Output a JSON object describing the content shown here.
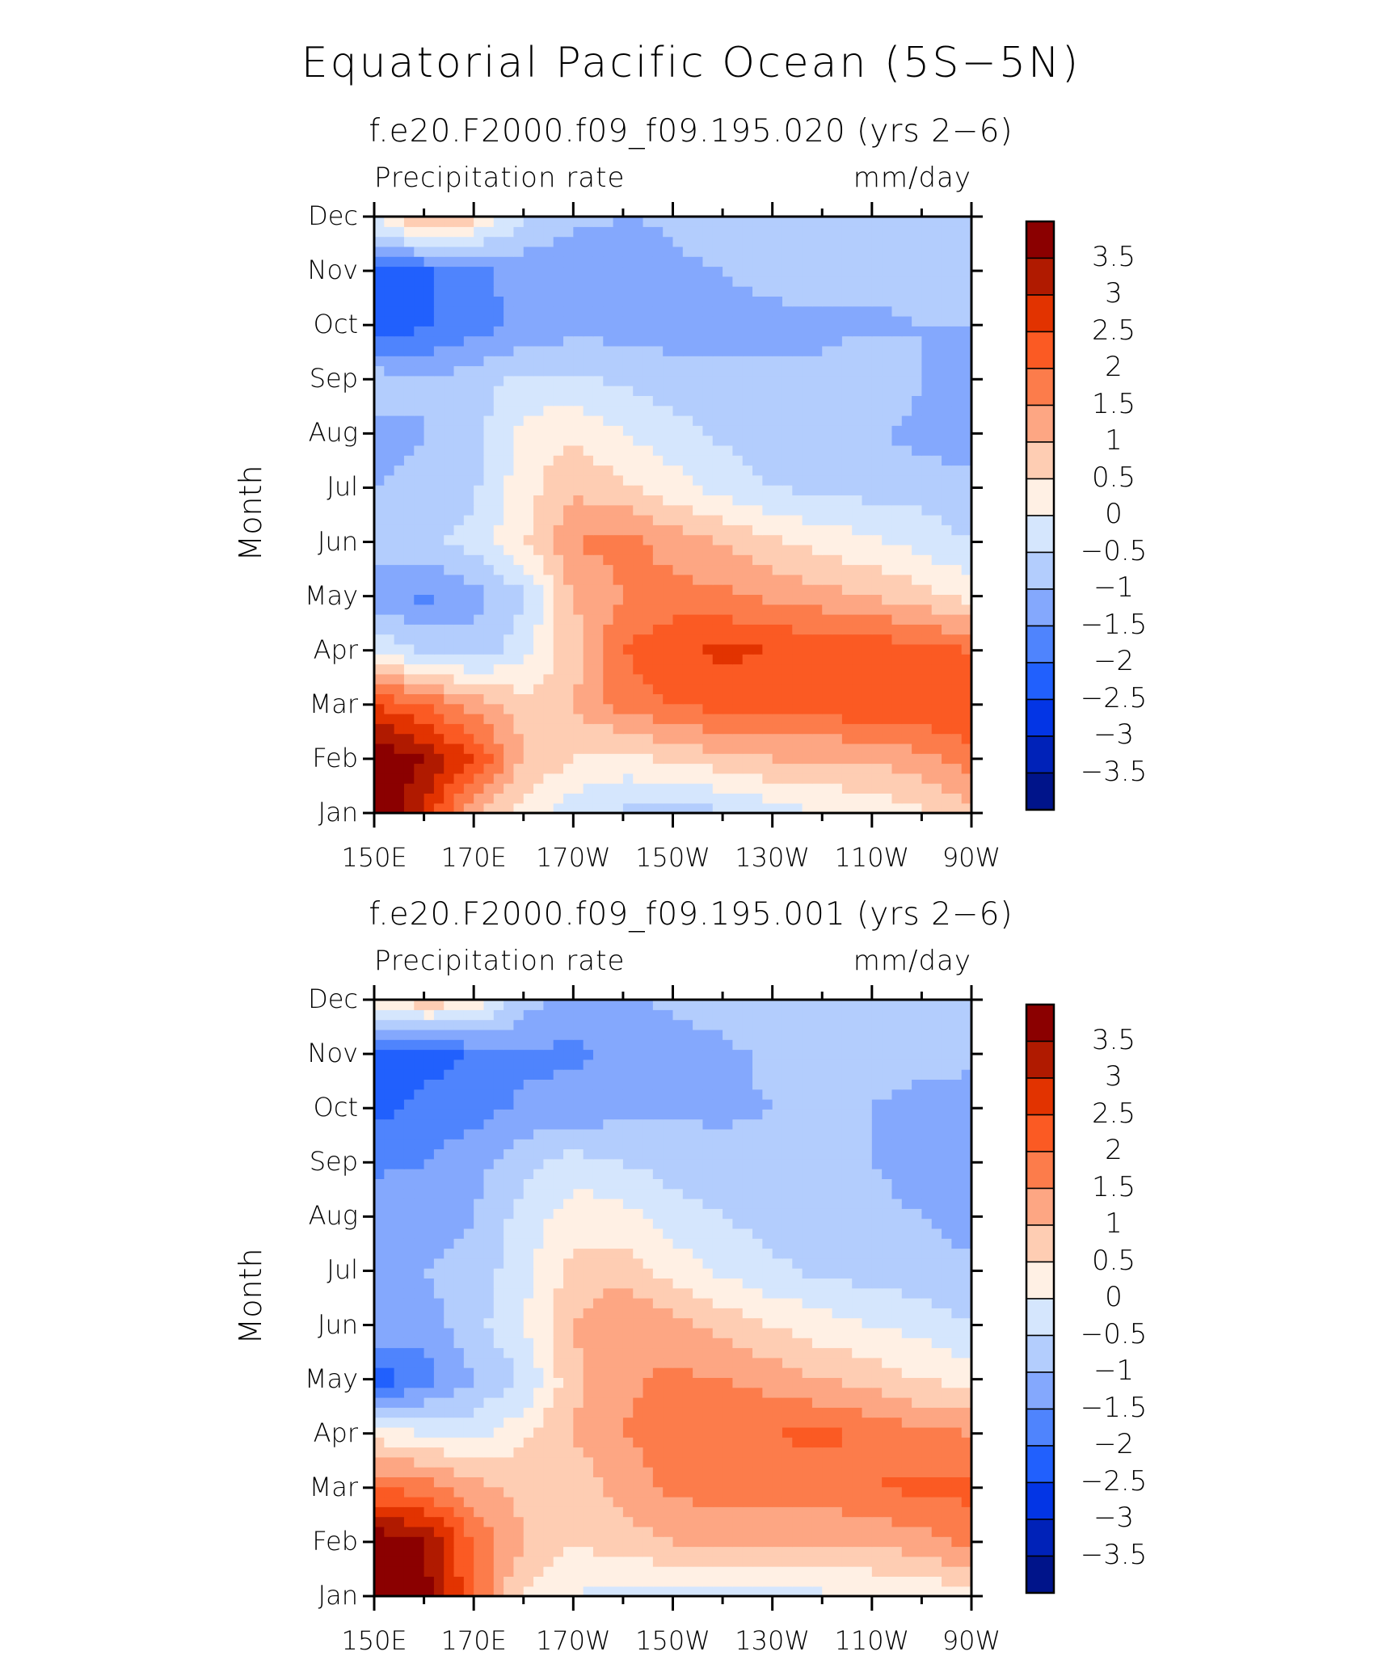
{
  "title": "Equatorial Pacific Ocean (5S−5N)",
  "chart_data": [
    {
      "type": "heatmap",
      "subtitle": "f.e20.F2000.f09_f09.195.020 (yrs 2−6)",
      "left_label": "Precipitation rate",
      "right_label": "mm/day",
      "ylabel": "Month",
      "x_tick_labels": [
        "150E",
        "170E",
        "170W",
        "150W",
        "130W",
        "110W",
        "90W"
      ],
      "y_tick_labels": [
        "Jan",
        "Feb",
        "Mar",
        "Apr",
        "May",
        "Jun",
        "Jul",
        "Aug",
        "Sep",
        "Oct",
        "Nov",
        "Dec"
      ],
      "xlim": [
        150,
        270
      ],
      "colorbar_levels": [
        "3.5",
        "3",
        "2.5",
        "2",
        "1.5",
        "1",
        "0.5",
        "0",
        "−0.5",
        "−1",
        "−1.5",
        "−2",
        "−2.5",
        "−3",
        "−3.5"
      ],
      "x": [
        150,
        160,
        170,
        180,
        190,
        200,
        210,
        220,
        230,
        240,
        250,
        260,
        270
      ],
      "y": [
        "Jan",
        "Feb",
        "Mar",
        "Apr",
        "May",
        "Jun",
        "Jul",
        "Aug",
        "Sep",
        "Oct",
        "Nov",
        "Dec"
      ],
      "values": [
        [
          4.0,
          3.0,
          1.0,
          0.2,
          -0.3,
          -0.6,
          -0.8,
          -0.6,
          -0.3,
          0.0,
          0.2,
          0.4,
          0.8
        ],
        [
          4.0,
          3.5,
          2.5,
          1.0,
          0.5,
          0.3,
          0.6,
          0.8,
          1.0,
          1.0,
          1.0,
          1.3,
          1.8
        ],
        [
          2.5,
          2.0,
          1.3,
          0.7,
          1.0,
          1.7,
          2.0,
          2.2,
          2.2,
          2.3,
          2.4,
          2.5,
          2.5
        ],
        [
          0.0,
          -0.6,
          -0.8,
          -0.2,
          0.8,
          2.0,
          2.4,
          2.6,
          2.5,
          2.4,
          2.4,
          2.2,
          2.0
        ],
        [
          -1.4,
          -1.6,
          -1.2,
          -0.6,
          1.0,
          1.5,
          1.7,
          1.6,
          1.4,
          1.2,
          1.0,
          0.7,
          0.3
        ],
        [
          -0.8,
          -0.6,
          -0.3,
          0.4,
          1.5,
          1.7,
          1.3,
          1.0,
          0.6,
          0.3,
          0.1,
          -0.2,
          -0.5
        ],
        [
          -1.0,
          -0.9,
          -0.6,
          0.3,
          0.9,
          0.6,
          0.2,
          -0.2,
          -0.5,
          -0.6,
          -0.7,
          -0.7,
          -0.9
        ],
        [
          -1.2,
          -1.0,
          -0.7,
          0.2,
          0.4,
          0.0,
          -0.3,
          -0.6,
          -0.8,
          -0.9,
          -0.9,
          -1.2,
          -1.2
        ],
        [
          -0.7,
          -1.0,
          -0.7,
          -0.4,
          -0.4,
          -0.6,
          -0.8,
          -0.9,
          -0.9,
          -0.9,
          -0.5,
          -1.0,
          -1.2
        ],
        [
          -2.3,
          -2.1,
          -1.7,
          -1.4,
          -1.2,
          -1.2,
          -1.2,
          -1.1,
          -1.1,
          -1.1,
          -1.1,
          -1.0,
          -1.0
        ],
        [
          -2.0,
          -2.1,
          -1.6,
          -1.3,
          -1.5,
          -1.4,
          -1.1,
          -1.0,
          -0.9,
          -0.8,
          -0.8,
          -0.8,
          -0.9
        ],
        [
          0.0,
          1.2,
          0.7,
          -0.5,
          -0.8,
          -1.0,
          -0.9,
          -0.8,
          -0.8,
          -0.8,
          -0.8,
          -0.8,
          -0.5
        ]
      ]
    },
    {
      "type": "heatmap",
      "subtitle": "f.e20.F2000.f09_f09.195.001 (yrs 2−6)",
      "left_label": "Precipitation rate",
      "right_label": "mm/day",
      "ylabel": "Month",
      "x_tick_labels": [
        "150E",
        "170E",
        "170W",
        "150W",
        "130W",
        "110W",
        "90W"
      ],
      "y_tick_labels": [
        "Jan",
        "Feb",
        "Mar",
        "Apr",
        "May",
        "Jun",
        "Jul",
        "Aug",
        "Sep",
        "Oct",
        "Nov",
        "Dec"
      ],
      "xlim": [
        150,
        270
      ],
      "colorbar_levels": [
        "3.5",
        "3",
        "2.5",
        "2",
        "1.5",
        "1",
        "0.5",
        "0",
        "−0.5",
        "−1",
        "−1.5",
        "−2",
        "−2.5",
        "−3",
        "−3.5"
      ],
      "x": [
        150,
        160,
        170,
        180,
        190,
        200,
        210,
        220,
        230,
        240,
        250,
        260,
        270
      ],
      "y": [
        "Jan",
        "Feb",
        "Mar",
        "Apr",
        "May",
        "Jun",
        "Jul",
        "Aug",
        "Sep",
        "Oct",
        "Nov",
        "Dec"
      ],
      "values": [
        [
          4.0,
          3.8,
          2.0,
          0.4,
          0.0,
          -0.2,
          -0.3,
          -0.3,
          -0.2,
          -0.1,
          0.0,
          0.1,
          0.3
        ],
        [
          4.0,
          3.5,
          2.0,
          1.0,
          0.5,
          0.8,
          1.0,
          1.0,
          1.0,
          1.0,
          1.1,
          1.3,
          1.6
        ],
        [
          2.0,
          1.8,
          1.2,
          0.8,
          0.7,
          1.2,
          1.6,
          1.8,
          1.8,
          1.8,
          2.0,
          2.1,
          2.2
        ],
        [
          0.3,
          0.0,
          -0.2,
          0.4,
          1.0,
          1.5,
          1.8,
          1.9,
          2.0,
          2.1,
          1.9,
          1.6,
          1.5
        ],
        [
          -2.3,
          -1.8,
          -1.0,
          -0.5,
          0.9,
          1.4,
          1.6,
          1.5,
          1.3,
          1.0,
          0.8,
          0.5,
          0.3
        ],
        [
          -1.0,
          -1.2,
          -0.7,
          0.0,
          1.0,
          1.5,
          1.2,
          0.8,
          0.5,
          0.2,
          0.0,
          -0.2,
          -0.5
        ],
        [
          -1.0,
          -1.0,
          -0.8,
          -0.2,
          0.7,
          0.8,
          0.3,
          -0.1,
          -0.4,
          -0.6,
          -0.7,
          -0.8,
          -0.9
        ],
        [
          -1.2,
          -1.3,
          -1.0,
          -0.3,
          0.3,
          0.2,
          -0.3,
          -0.5,
          -0.7,
          -0.8,
          -0.8,
          -1.0,
          -1.2
        ],
        [
          -1.6,
          -1.5,
          -1.2,
          -0.7,
          -0.3,
          -0.5,
          -0.7,
          -0.8,
          -0.8,
          -0.8,
          -1.0,
          -1.3,
          -1.3
        ],
        [
          -2.2,
          -1.8,
          -1.7,
          -1.4,
          -1.3,
          -1.2,
          -1.1,
          -1.1,
          -1.0,
          -0.9,
          -1.0,
          -1.2,
          -1.2
        ],
        [
          -2.3,
          -2.3,
          -1.9,
          -1.6,
          -1.6,
          -1.4,
          -1.2,
          -1.1,
          -0.9,
          -0.9,
          -0.8,
          -0.8,
          -0.9
        ],
        [
          0.2,
          0.9,
          0.6,
          -0.8,
          -1.2,
          -1.1,
          -0.9,
          -0.8,
          -0.8,
          -0.7,
          -0.6,
          -0.6,
          -0.6
        ]
      ]
    }
  ]
}
